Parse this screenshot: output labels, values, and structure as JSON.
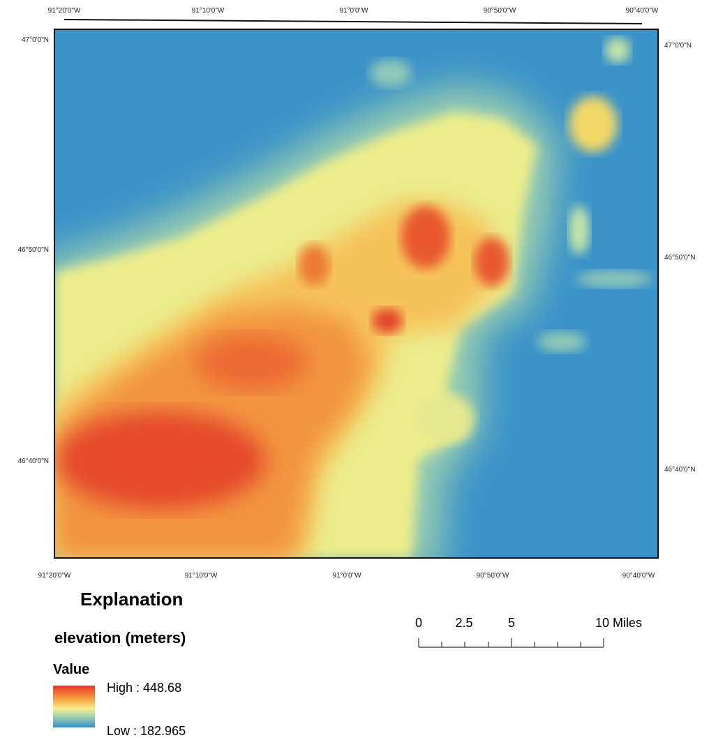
{
  "graticule": {
    "top": [
      "91°20'0\"W",
      "91°10'0\"W",
      "91°0'0\"W",
      "90°50'0\"W",
      "90°40'0\"W"
    ],
    "bottom": [
      "91°20'0\"W",
      "91°10'0\"W",
      "91°0'0\"W",
      "90°50'0\"W",
      "90°40'0\"W"
    ],
    "left": [
      "47°0'0\"N",
      "46°50'0\"N",
      "46°40'0\"N"
    ],
    "right": [
      "47°0'0\"N",
      "46°50'0\"N",
      "46°40'0\"N"
    ]
  },
  "legend": {
    "title": "Explanation",
    "layer": "elevation (meters)",
    "field": "Value",
    "high": "High : 448.68",
    "low": "Low : 182.965"
  },
  "scale_bar": {
    "labels": [
      "0",
      "2.5",
      "5",
      "10 Miles"
    ]
  }
}
